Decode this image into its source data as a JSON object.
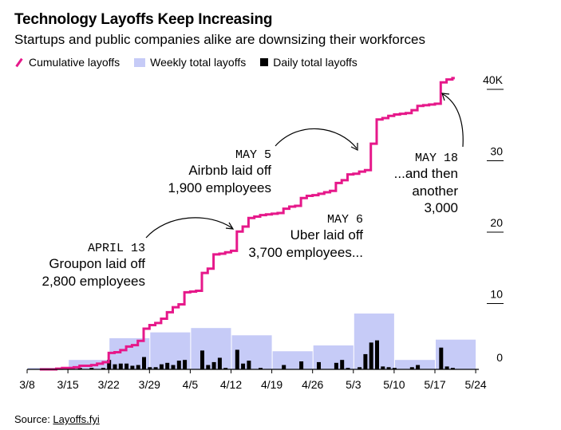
{
  "title": "Technology Layoffs Keep Increasing",
  "subtitle": "Startups and public companies alike are downsizing their workforces",
  "legend": {
    "cumulative": "Cumulative layoffs",
    "weekly": "Weekly total layoffs",
    "daily": "Daily total layoffs"
  },
  "source": {
    "prefix": "Source: ",
    "link": "Layoffs.fyi"
  },
  "colors": {
    "cumulative": "#e6188a",
    "weekly": "#c6cbf7",
    "daily": "#000000"
  },
  "chart_data": {
    "type": "line",
    "title": "Technology Layoffs Keep Increasing",
    "x_ticks": [
      "3/8",
      "3/15",
      "3/22",
      "3/29",
      "4/5",
      "4/12",
      "4/19",
      "4/26",
      "5/3",
      "5/10",
      "5/17",
      "5/24"
    ],
    "x_start": "2020-03-08",
    "y_ticks": [
      "40K",
      "30",
      "20",
      "10",
      "0"
    ],
    "ylim": [
      0,
      42000
    ],
    "grid": false,
    "legend_position": "top-left",
    "series": [
      {
        "name": "Cumulative layoffs",
        "kind": "step-line",
        "x": [
          "2020-03-11",
          "2020-03-13",
          "2020-03-14",
          "2020-03-16",
          "2020-03-17",
          "2020-03-19",
          "2020-03-20",
          "2020-03-21",
          "2020-03-22",
          "2020-03-23",
          "2020-03-24",
          "2020-03-25",
          "2020-03-26",
          "2020-03-27",
          "2020-03-28",
          "2020-03-29",
          "2020-03-30",
          "2020-03-31",
          "2020-04-01",
          "2020-04-02",
          "2020-04-03",
          "2020-04-04",
          "2020-04-05",
          "2020-04-06",
          "2020-04-07",
          "2020-04-08",
          "2020-04-09",
          "2020-04-10",
          "2020-04-11",
          "2020-04-12",
          "2020-04-13",
          "2020-04-14",
          "2020-04-15",
          "2020-04-16",
          "2020-04-17",
          "2020-04-18",
          "2020-04-19",
          "2020-04-20",
          "2020-04-21",
          "2020-04-22",
          "2020-04-23",
          "2020-04-24",
          "2020-04-25",
          "2020-04-26",
          "2020-04-27",
          "2020-04-28",
          "2020-04-29",
          "2020-04-30",
          "2020-05-01",
          "2020-05-02",
          "2020-05-03",
          "2020-05-04",
          "2020-05-05",
          "2020-05-06",
          "2020-05-07",
          "2020-05-08",
          "2020-05-09",
          "2020-05-10",
          "2020-05-11",
          "2020-05-12",
          "2020-05-13",
          "2020-05-14",
          "2020-05-15",
          "2020-05-16",
          "2020-05-17",
          "2020-05-18",
          "2020-05-19",
          "2020-05-20"
        ],
        "values": [
          0,
          100,
          200,
          300,
          500,
          600,
          800,
          1000,
          2300,
          2400,
          2700,
          3200,
          3400,
          4000,
          5700,
          6200,
          6500,
          7100,
          8000,
          8700,
          9100,
          10800,
          10900,
          11000,
          13500,
          14100,
          16100,
          16200,
          16400,
          16600,
          19300,
          20000,
          21200,
          21400,
          21600,
          21700,
          21800,
          21900,
          22500,
          22800,
          22900,
          24000,
          24300,
          24400,
          24600,
          24800,
          25000,
          26100,
          26500,
          27300,
          27400,
          27700,
          27900,
          31600,
          35000,
          35200,
          35500,
          35700,
          35800,
          35900,
          36300,
          36900,
          37000,
          37100,
          37200,
          40200,
          40600,
          40800
        ]
      },
      {
        "name": "Weekly total layoffs",
        "kind": "bar",
        "week_starts": [
          "2020-03-08",
          "2020-03-15",
          "2020-03-22",
          "2020-03-29",
          "2020-04-05",
          "2020-04-12",
          "2020-04-19",
          "2020-04-26",
          "2020-05-03",
          "2020-05-10",
          "2020-05-17"
        ],
        "values": [
          200,
          1300,
          4300,
          5100,
          5700,
          4700,
          2500,
          3300,
          7700,
          1300,
          4100
        ]
      },
      {
        "name": "Daily total layoffs",
        "kind": "bar",
        "x": [
          "2020-03-13",
          "2020-03-14",
          "2020-03-17",
          "2020-03-19",
          "2020-03-21",
          "2020-03-22",
          "2020-03-23",
          "2020-03-24",
          "2020-03-25",
          "2020-03-26",
          "2020-03-27",
          "2020-03-28",
          "2020-03-29",
          "2020-03-30",
          "2020-03-31",
          "2020-04-01",
          "2020-04-02",
          "2020-04-03",
          "2020-04-04",
          "2020-04-07",
          "2020-04-08",
          "2020-04-09",
          "2020-04-10",
          "2020-04-11",
          "2020-04-13",
          "2020-04-14",
          "2020-04-15",
          "2020-04-17",
          "2020-04-21",
          "2020-04-24",
          "2020-04-27",
          "2020-04-30",
          "2020-05-01",
          "2020-05-02",
          "2020-05-04",
          "2020-05-05",
          "2020-05-06",
          "2020-05-07",
          "2020-05-08",
          "2020-05-09",
          "2020-05-10",
          "2020-05-13",
          "2020-05-14",
          "2020-05-18",
          "2020-05-19",
          "2020-05-20"
        ],
        "values": [
          100,
          100,
          200,
          200,
          200,
          1300,
          700,
          800,
          800,
          500,
          600,
          1700,
          300,
          300,
          700,
          900,
          600,
          1200,
          1300,
          2600,
          600,
          1000,
          1600,
          200,
          2700,
          800,
          1200,
          200,
          600,
          1100,
          1000,
          900,
          1300,
          200,
          300,
          2100,
          3700,
          4000,
          400,
          300,
          200,
          300,
          600,
          3000,
          400,
          200
        ]
      }
    ],
    "annotations": [
      {
        "date_label": "APRIL 13",
        "lines": [
          "Groupon laid off",
          "2,800 employees"
        ]
      },
      {
        "date_label": "MAY 5",
        "lines": [
          "Airbnb laid off",
          "1,900 employees"
        ]
      },
      {
        "date_label": "MAY 6",
        "lines": [
          "Uber laid off",
          "3,700 employees..."
        ]
      },
      {
        "date_label": "MAY 18",
        "lines": [
          "...and then",
          "another",
          "3,000"
        ]
      }
    ]
  }
}
